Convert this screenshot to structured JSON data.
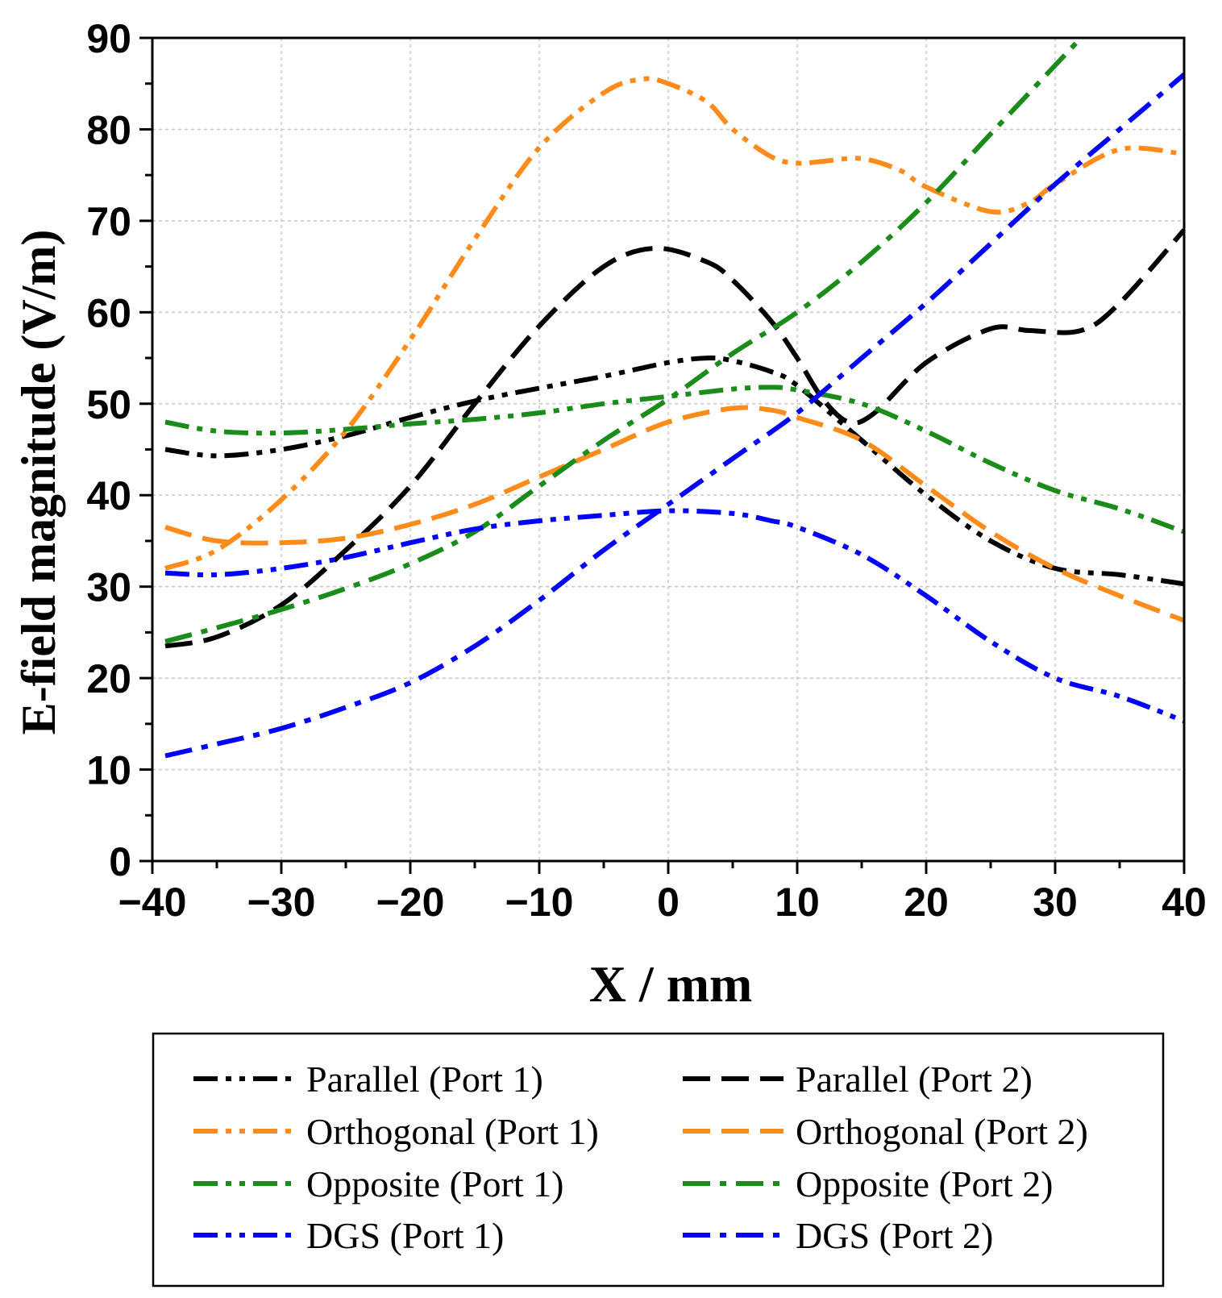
{
  "chart_data": {
    "type": "line",
    "title": "",
    "xlabel": "X / mm",
    "ylabel": "E-field magnitude (V/m)",
    "xlim": [
      -40,
      40
    ],
    "ylim": [
      0,
      90
    ],
    "xticks": [
      -40,
      -30,
      -20,
      -10,
      0,
      10,
      20,
      30,
      40
    ],
    "xtick_labels": [
      "−40",
      "−30",
      "−20",
      "−10",
      "0",
      "10",
      "20",
      "30",
      "40"
    ],
    "yticks": [
      0,
      10,
      20,
      30,
      40,
      50,
      60,
      70,
      80,
      90
    ],
    "ytick_labels": [
      "0",
      "10",
      "20",
      "30",
      "40",
      "50",
      "60",
      "70",
      "80",
      "90"
    ],
    "grid": true,
    "legend_position": "bottom",
    "series": [
      {
        "name": "Parallel (Port 1)",
        "color": "#000000",
        "dash": "dashdotdot",
        "x": [
          -39,
          -35,
          -30,
          -25,
          -20,
          -15,
          -10,
          -5,
          0,
          3,
          5,
          8,
          10,
          15,
          20,
          25,
          30,
          35,
          40
        ],
        "y": [
          45,
          44.3,
          45,
          46.5,
          48.5,
          50.3,
          51.7,
          53,
          54.5,
          55,
          54.7,
          53.5,
          52,
          46,
          40,
          35,
          32,
          31.3,
          30.3
        ]
      },
      {
        "name": "Parallel (Port 2)",
        "color": "#000000",
        "dash": "dash",
        "x": [
          -39,
          -35,
          -30,
          -25,
          -20,
          -15,
          -10,
          -5,
          -1,
          3,
          5,
          8,
          10,
          12,
          14,
          16,
          20,
          25,
          28,
          32,
          35,
          40
        ],
        "y": [
          23.5,
          24.5,
          28,
          34,
          41,
          50,
          58.5,
          65,
          67,
          65.5,
          63.5,
          59,
          55,
          50.5,
          48,
          49,
          54.5,
          58.2,
          58,
          58,
          61,
          69
        ]
      },
      {
        "name": "Orthogonal (Port 1)",
        "color": "#ff8c1a",
        "dash": "dashdotdot",
        "x": [
          -39,
          -35,
          -30,
          -25,
          -20,
          -15,
          -10,
          -5,
          -2,
          0,
          3,
          5,
          8,
          10,
          12,
          15,
          18,
          20,
          25,
          28,
          30,
          35,
          40
        ],
        "y": [
          32,
          34,
          39.5,
          47,
          57,
          68,
          78,
          84,
          85.5,
          85,
          83,
          80,
          77,
          76.3,
          76.5,
          76.8,
          75.5,
          73.7,
          71,
          72,
          74,
          77.8,
          77.3
        ]
      },
      {
        "name": "Orthogonal (Port 2)",
        "color": "#ff8c1a",
        "dash": "dash",
        "x": [
          -39,
          -35,
          -30,
          -25,
          -20,
          -15,
          -10,
          -5,
          0,
          5,
          8,
          10,
          15,
          20,
          25,
          30,
          35,
          40
        ],
        "y": [
          36.5,
          35,
          34.8,
          35.3,
          36.8,
          39,
          42,
          45,
          48,
          49.5,
          49.3,
          48.5,
          46,
          41,
          36,
          32,
          29,
          26.3
        ]
      },
      {
        "name": "Opposite (Port 1)",
        "color": "#1a8c1a",
        "dash": "dashdotdot",
        "x": [
          -39,
          -35,
          -30,
          -25,
          -20,
          -15,
          -10,
          -5,
          0,
          5,
          8,
          10,
          15,
          20,
          25,
          30,
          35,
          40
        ],
        "y": [
          48,
          47,
          46.8,
          47.2,
          47.8,
          48.3,
          49,
          50,
          50.8,
          51.6,
          51.8,
          51.5,
          50,
          47,
          43.5,
          40.5,
          38.5,
          36
        ]
      },
      {
        "name": "Opposite (Port 2)",
        "color": "#1a8c1a",
        "dash": "dashdot",
        "x": [
          -39,
          -35,
          -30,
          -25,
          -20,
          -15,
          -10,
          -5,
          0,
          5,
          10,
          15,
          20,
          25,
          30,
          32
        ],
        "y": [
          24,
          25.5,
          27.5,
          29.8,
          32.5,
          36,
          41,
          46,
          50.5,
          55.5,
          60,
          65.5,
          72,
          79.5,
          87,
          90
        ]
      },
      {
        "name": "DGS (Port 1)",
        "color": "#0000ff",
        "dash": "dashdotdot",
        "x": [
          -39,
          -35,
          -30,
          -25,
          -20,
          -15,
          -10,
          -5,
          0,
          5,
          8,
          10,
          15,
          20,
          25,
          30,
          35,
          40
        ],
        "y": [
          31.5,
          31.3,
          32,
          33.2,
          34.8,
          36.3,
          37.2,
          37.8,
          38.3,
          38,
          37.2,
          36.5,
          33.5,
          29,
          24,
          20,
          18,
          15.3
        ]
      },
      {
        "name": "DGS (Port 2)",
        "color": "#0000ff",
        "dash": "dashdot",
        "x": [
          -39,
          -35,
          -30,
          -25,
          -20,
          -15,
          -10,
          -5,
          0,
          5,
          10,
          15,
          20,
          25,
          30,
          35,
          40
        ],
        "y": [
          11.5,
          12.8,
          14.5,
          16.8,
          19.5,
          23.5,
          28.5,
          34,
          39,
          44,
          49,
          55,
          61,
          67.5,
          74,
          80,
          86
        ]
      }
    ]
  }
}
